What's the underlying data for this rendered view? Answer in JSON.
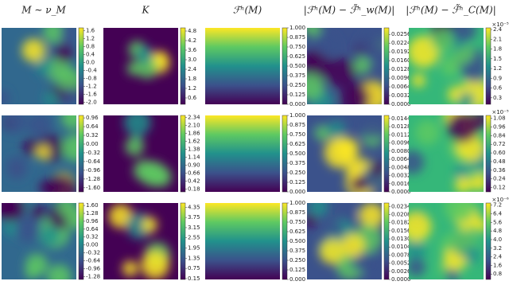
{
  "columns": [
    "M ∼ ν_M",
    "K",
    "ℱʰ(M)",
    "|ℱʰ(M) − ℱ̃ʰ_w(M)|",
    "|ℱʰ(M) − ℱ̃ʰ_C(M)|"
  ],
  "rows": [
    [
      {
        "range": [
          -2.1,
          1.75
        ],
        "ticks": [
          1.6,
          1.2,
          0.8,
          0.4,
          {
            "value": 0,
            "label": "0.0"
          },
          -0.4,
          -0.8,
          -1.2,
          -1.6,
          {
            "value": -2,
            "label": "-2.0"
          }
        ]
      },
      {
        "range": [
          0.2,
          5.0
        ],
        "ticks": [
          4.8,
          4.2,
          3.6,
          {
            "value": 3,
            "label": "3.0"
          },
          2.4,
          1.8,
          1.2,
          0.6
        ]
      },
      {
        "range": [
          0,
          1
        ],
        "ticks": [
          {
            "value": 1,
            "label": "1.000"
          },
          0.875,
          {
            "value": 0.75,
            "label": "0.750"
          },
          0.625,
          {
            "value": 0.5,
            "label": "0.500"
          },
          0.375,
          {
            "value": 0.25,
            "label": "0.250"
          },
          0.125,
          {
            "value": 0,
            "label": "0.000"
          }
        ]
      },
      {
        "range": [
          0,
          0.028
        ],
        "ticks": [
          0.0256,
          0.0224,
          0.0192,
          {
            "value": 0.016,
            "label": "0.0160"
          },
          0.0128,
          0.0096,
          0.0064,
          0.0032,
          {
            "value": 0,
            "label": "0.0000"
          }
        ]
      },
      {
        "range": [
          0.1,
          2.45
        ],
        "ticks": [
          2.4,
          2.1,
          1.8,
          1.5,
          1.2,
          0.9,
          0.6,
          0.3
        ],
        "exponent": "×10⁻⁵"
      }
    ],
    [
      {
        "range": [
          -1.75,
          1.05
        ],
        "ticks": [
          0.96,
          0.64,
          0.32,
          {
            "value": 0,
            "label": "0.00"
          },
          -0.32,
          -0.64,
          -0.96,
          -1.28,
          {
            "value": -1.6,
            "label": "-1.60"
          }
        ]
      },
      {
        "range": [
          0.1,
          2.4
        ],
        "ticks": [
          2.34,
          {
            "value": 2.1,
            "label": "2.10"
          },
          1.86,
          1.62,
          1.38,
          1.14,
          {
            "value": 0.9,
            "label": "0.90"
          },
          0.66,
          0.42,
          0.18
        ]
      },
      {
        "range": [
          0,
          1
        ],
        "ticks": [
          {
            "value": 1,
            "label": "1.000"
          },
          0.875,
          {
            "value": 0.75,
            "label": "0.750"
          },
          0.625,
          {
            "value": 0.5,
            "label": "0.500"
          },
          0.375,
          {
            "value": 0.25,
            "label": "0.250"
          },
          0.125,
          {
            "value": 0,
            "label": "0.000"
          }
        ]
      },
      {
        "range": [
          0,
          0.015
        ],
        "ticks": [
          0.0144,
          0.0128,
          0.0112,
          0.0096,
          {
            "value": 0.008,
            "label": "0.0080"
          },
          0.0064,
          0.0048,
          0.0032,
          0.0016,
          {
            "value": 0,
            "label": "0.0000"
          }
        ]
      },
      {
        "range": [
          0.06,
          1.12
        ],
        "ticks": [
          1.08,
          0.96,
          0.84,
          0.72,
          {
            "value": 0.6,
            "label": "0.60"
          },
          0.48,
          0.36,
          0.24,
          0.12
        ],
        "exponent": "×10⁻⁵"
      }
    ],
    [
      {
        "range": [
          -1.4,
          1.7
        ],
        "ticks": [
          {
            "value": 1.6,
            "label": "1.60"
          },
          1.28,
          0.96,
          0.64,
          0.32,
          {
            "value": 0,
            "label": "0.00"
          },
          -0.32,
          -0.64,
          -0.96,
          -1.28
        ]
      },
      {
        "range": [
          0.1,
          4.6
        ],
        "ticks": [
          4.35,
          3.75,
          3.15,
          2.55,
          1.95,
          1.35,
          0.75,
          0.15
        ]
      },
      {
        "range": [
          0,
          1
        ],
        "ticks": [
          {
            "value": 1,
            "label": "1.000"
          },
          0.875,
          {
            "value": 0.75,
            "label": "0.750"
          },
          0.625,
          {
            "value": 0.5,
            "label": "0.500"
          },
          0.375,
          {
            "value": 0.25,
            "label": "0.250"
          },
          0.125,
          {
            "value": 0,
            "label": "0.000"
          }
        ]
      },
      {
        "range": [
          0,
          0.0245
        ],
        "ticks": [
          0.0234,
          0.0208,
          0.0182,
          0.0156,
          {
            "value": 0.013,
            "label": "0.0130"
          },
          0.0104,
          0.0078,
          0.0052,
          0.0026,
          {
            "value": 0,
            "label": "0.0000"
          }
        ]
      },
      {
        "range": [
          0.3,
          7.4
        ],
        "ticks": [
          7.2,
          6.4,
          5.6,
          4.8,
          {
            "value": 4,
            "label": "4.0"
          },
          3.2,
          2.4,
          1.6,
          0.8
        ],
        "exponent": "×10⁻⁶"
      }
    ]
  ]
}
